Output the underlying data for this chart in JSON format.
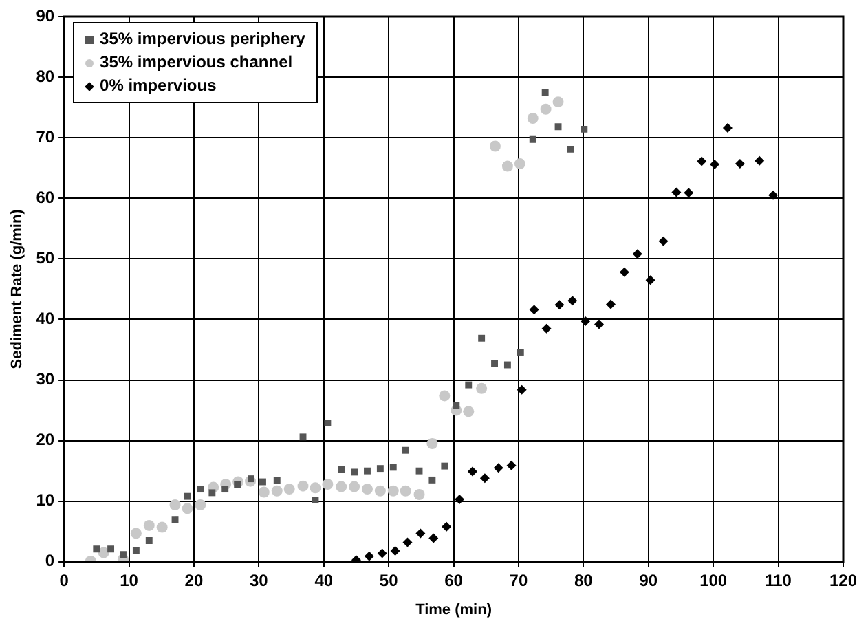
{
  "chart_data": {
    "type": "scatter",
    "xlabel": "Time (min)",
    "ylabel": "Sediment Rate (g/min)",
    "xlim": [
      0,
      120
    ],
    "xticks": [
      0,
      10,
      20,
      30,
      40,
      50,
      60,
      70,
      80,
      90,
      100,
      110,
      120
    ],
    "ylim": [
      0,
      90
    ],
    "yticks": [
      0,
      10,
      20,
      30,
      40,
      50,
      60,
      70,
      80,
      90
    ],
    "grid": true,
    "legend": "top left",
    "series": [
      {
        "name": "35% impervious periphery",
        "color": "#555555",
        "marker": "square",
        "x": [
          5.0,
          7.2,
          9.1,
          11.1,
          13.1,
          17.1,
          19.0,
          21.0,
          22.8,
          24.8,
          26.7,
          28.8,
          30.6,
          32.8,
          36.8,
          38.7,
          40.6,
          42.7,
          44.7,
          46.7,
          48.7,
          50.7,
          52.6,
          54.7,
          56.7,
          58.6,
          60.4,
          62.3,
          64.3,
          66.3,
          68.3,
          70.3,
          72.2,
          74.1,
          76.1,
          78.0,
          80.1
        ],
        "values": [
          2.1,
          2.1,
          1.2,
          1.8,
          3.5,
          7.0,
          10.8,
          12.0,
          11.4,
          12.0,
          12.8,
          13.7,
          13.2,
          13.4,
          20.6,
          10.2,
          22.9,
          15.2,
          14.8,
          15.0,
          15.4,
          15.6,
          18.4,
          15.0,
          13.5,
          15.8,
          25.8,
          29.2,
          36.9,
          32.7,
          32.5,
          34.6,
          69.7,
          77.4,
          71.8,
          68.1,
          71.4
        ]
      },
      {
        "name": "35% impervious channel",
        "color": "#c8c8c8",
        "marker": "circle",
        "x": [
          4.1,
          6.1,
          9.1,
          11.1,
          13.1,
          15.1,
          17.1,
          19.0,
          21.0,
          23.0,
          24.9,
          26.8,
          28.7,
          30.8,
          32.8,
          34.7,
          36.8,
          38.7,
          40.6,
          42.7,
          44.7,
          46.7,
          48.7,
          50.7,
          52.6,
          54.7,
          56.7,
          58.6,
          60.4,
          62.3,
          64.3,
          66.4,
          68.3,
          70.2,
          72.2,
          74.2,
          76.1
        ],
        "values": [
          0.1,
          1.5,
          0.4,
          4.7,
          6.0,
          5.7,
          9.4,
          8.8,
          9.4,
          12.3,
          12.8,
          13.2,
          13.3,
          11.5,
          11.7,
          12.0,
          12.5,
          12.2,
          12.8,
          12.4,
          12.4,
          12.0,
          11.7,
          11.7,
          11.7,
          11.1,
          19.5,
          27.4,
          25.0,
          24.8,
          28.6,
          68.6,
          65.3,
          65.7,
          73.2,
          74.7,
          75.9
        ]
      },
      {
        "name": "0% impervious",
        "color": "#000000",
        "marker": "diamond",
        "x": [
          45.0,
          47.0,
          49.0,
          51.0,
          52.9,
          54.9,
          56.9,
          58.9,
          60.9,
          62.9,
          64.8,
          66.9,
          68.9,
          70.5,
          72.4,
          74.3,
          76.3,
          78.3,
          80.3,
          82.4,
          84.2,
          86.3,
          88.3,
          90.3,
          92.3,
          94.3,
          96.2,
          98.2,
          100.2,
          102.2,
          104.1,
          107.1,
          109.2
        ],
        "values": [
          0.3,
          0.9,
          1.4,
          1.8,
          3.2,
          4.7,
          3.9,
          5.8,
          10.3,
          14.9,
          13.8,
          15.5,
          15.9,
          28.4,
          41.6,
          38.5,
          42.4,
          43.1,
          39.7,
          39.2,
          42.5,
          47.8,
          50.8,
          46.5,
          52.9,
          61.0,
          60.9,
          66.1,
          65.6,
          71.6,
          65.7,
          66.2,
          60.5
        ]
      }
    ]
  }
}
